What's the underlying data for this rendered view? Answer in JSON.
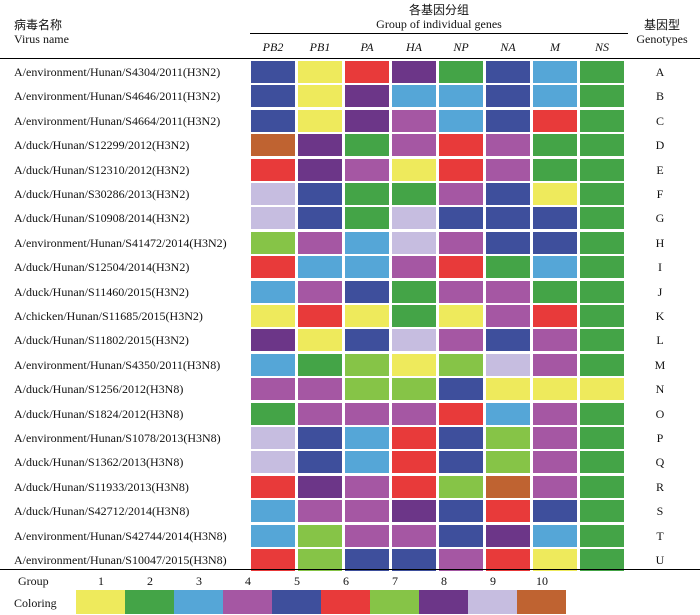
{
  "header": {
    "virus_name_zh": "病毒名称",
    "virus_name_en": "Virus name",
    "group_title_zh": "各基因分组",
    "group_title_en": "Group of individual genes",
    "genotype_zh": "基因型",
    "genotype_en": "Genotypes"
  },
  "genes": [
    "PB2",
    "PB1",
    "PA",
    "HA",
    "NP",
    "NA",
    "M",
    "NS"
  ],
  "palette": {
    "1": "#eeea5c",
    "2": "#44a447",
    "3": "#55a6d7",
    "4": "#a557a3",
    "5": "#3e4f9c",
    "6": "#e83a3a",
    "7": "#86c447",
    "8": "#6c3688",
    "9": "#c6bde0",
    "10": "#bf6331"
  },
  "rows": [
    {
      "name": "A/environment/Hunan/S4304/2011(H3N2)",
      "genotype": "A",
      "groups": [
        5,
        1,
        6,
        8,
        2,
        5,
        3,
        2
      ]
    },
    {
      "name": "A/environment/Hunan/S4646/2011(H3N2)",
      "genotype": "B",
      "groups": [
        5,
        1,
        8,
        3,
        3,
        5,
        3,
        2
      ]
    },
    {
      "name": "A/environment/Hunan/S4664/2011(H3N2)",
      "genotype": "C",
      "groups": [
        5,
        1,
        8,
        4,
        3,
        5,
        6,
        2
      ]
    },
    {
      "name": "A/duck/Hunan/S12299/2012(H3N2)",
      "genotype": "D",
      "groups": [
        10,
        8,
        2,
        4,
        6,
        4,
        2,
        2
      ]
    },
    {
      "name": "A/duck/Hunan/S12310/2012(H3N2)",
      "genotype": "E",
      "groups": [
        6,
        8,
        4,
        1,
        6,
        4,
        2,
        2
      ]
    },
    {
      "name": "A/duck/Hunan/S30286/2013(H3N2)",
      "genotype": "F",
      "groups": [
        9,
        5,
        2,
        2,
        4,
        5,
        1,
        2
      ]
    },
    {
      "name": "A/duck/Hunan/S10908/2014(H3N2)",
      "genotype": "G",
      "groups": [
        9,
        5,
        2,
        9,
        5,
        5,
        5,
        2
      ]
    },
    {
      "name": "A/environment/Hunan/S41472/2014(H3N2)",
      "genotype": "H",
      "groups": [
        7,
        4,
        3,
        9,
        4,
        5,
        5,
        2
      ]
    },
    {
      "name": "A/duck/Hunan/S12504/2014(H3N2)",
      "genotype": "I",
      "groups": [
        6,
        3,
        3,
        4,
        6,
        2,
        3,
        2
      ]
    },
    {
      "name": "A/duck/Hunan/S11460/2015(H3N2)",
      "genotype": "J",
      "groups": [
        3,
        4,
        5,
        2,
        4,
        4,
        2,
        2
      ]
    },
    {
      "name": "A/chicken/Hunan/S11685/2015(H3N2)",
      "genotype": "K",
      "groups": [
        1,
        6,
        1,
        2,
        1,
        4,
        6,
        2
      ]
    },
    {
      "name": "A/duck/Hunan/S11802/2015(H3N2)",
      "genotype": "L",
      "groups": [
        8,
        1,
        5,
        9,
        4,
        5,
        4,
        2
      ]
    },
    {
      "name": "A/environment/Hunan/S4350/2011(H3N8)",
      "genotype": "M",
      "groups": [
        3,
        2,
        7,
        1,
        7,
        9,
        4,
        2
      ]
    },
    {
      "name": "A/duck/Hunan/S1256/2012(H3N8)",
      "genotype": "N",
      "groups": [
        4,
        4,
        7,
        7,
        5,
        1,
        1,
        1
      ]
    },
    {
      "name": "A/duck/Hunan/S1824/2012(H3N8)",
      "genotype": "O",
      "groups": [
        2,
        4,
        4,
        4,
        6,
        3,
        4,
        2
      ]
    },
    {
      "name": "A/environment/Hunan/S1078/2013(H3N8)",
      "genotype": "P",
      "groups": [
        9,
        5,
        3,
        6,
        5,
        7,
        4,
        2
      ]
    },
    {
      "name": "A/duck/Hunan/S1362/2013(H3N8)",
      "genotype": "Q",
      "groups": [
        9,
        5,
        3,
        6,
        5,
        7,
        4,
        2
      ]
    },
    {
      "name": "A/duck/Hunan/S11933/2013(H3N8)",
      "genotype": "R",
      "groups": [
        6,
        8,
        4,
        6,
        7,
        10,
        4,
        2
      ]
    },
    {
      "name": "A/duck/Hunan/S42712/2014(H3N8)",
      "genotype": "S",
      "groups": [
        3,
        4,
        4,
        8,
        5,
        6,
        5,
        2
      ]
    },
    {
      "name": "A/environment/Hunan/S42744/2014(H3N8)",
      "genotype": "T",
      "groups": [
        3,
        7,
        4,
        4,
        5,
        8,
        3,
        2
      ]
    },
    {
      "name": "A/environment/Hunan/S10047/2015(H3N8)",
      "genotype": "U",
      "groups": [
        6,
        7,
        5,
        5,
        4,
        6,
        1,
        2
      ]
    }
  ],
  "legend": {
    "group_label": "Group",
    "coloring_label": "Coloring",
    "groups": [
      1,
      2,
      3,
      4,
      5,
      6,
      7,
      8,
      9,
      10
    ]
  }
}
